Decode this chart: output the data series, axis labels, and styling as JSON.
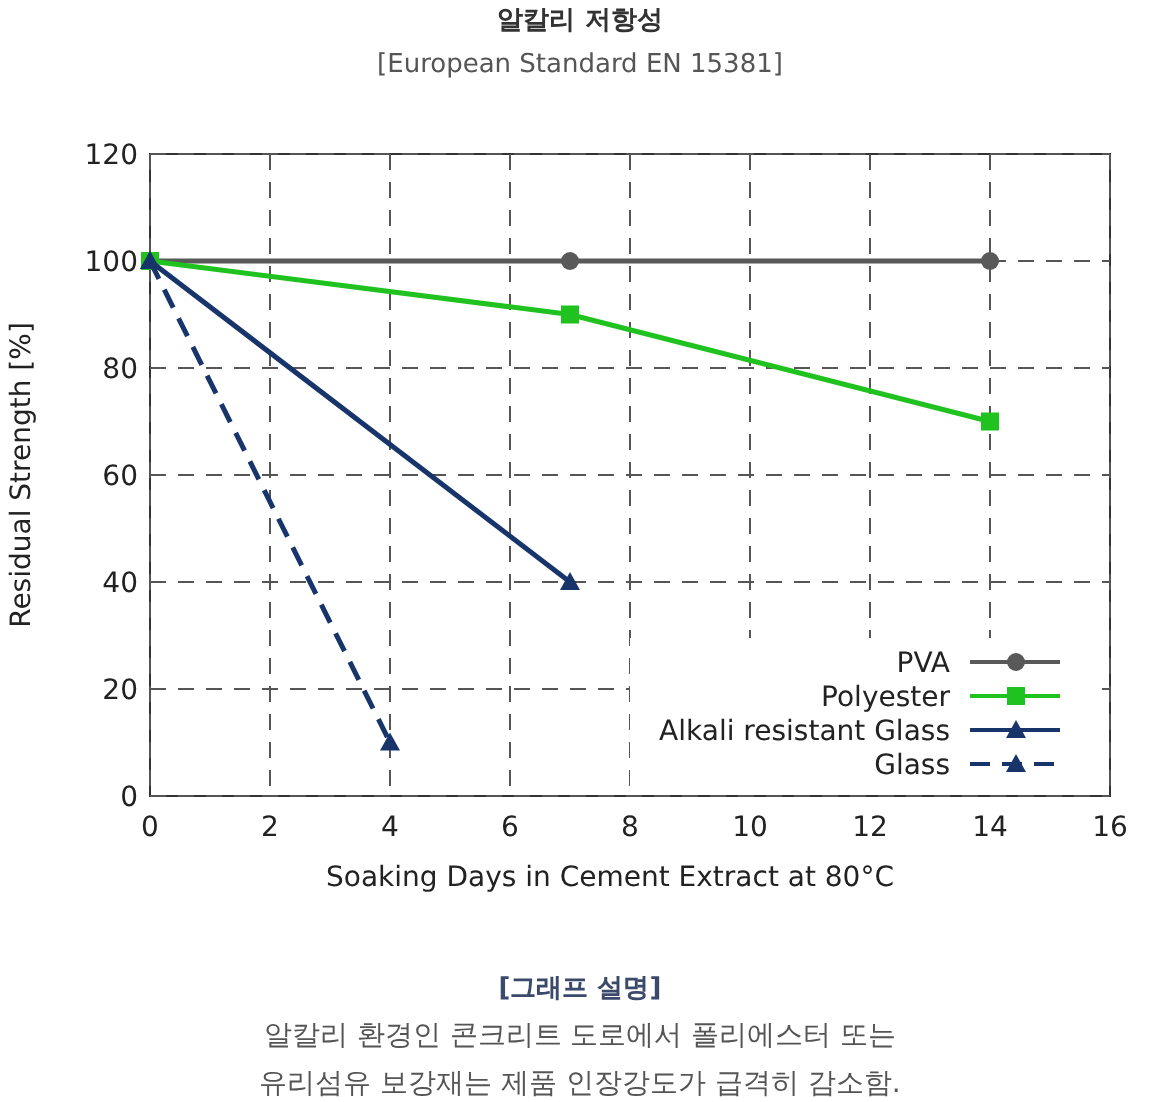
{
  "chart_data": {
    "type": "line",
    "title": "알칼리 저항성",
    "subtitle": "[European Standard EN 15381]",
    "xlabel": "Soaking Days in Cement Extract at 80°C",
    "ylabel": "Residual Strength [%]",
    "xlim": [
      0,
      16
    ],
    "xticks": [
      0,
      2,
      4,
      6,
      8,
      10,
      12,
      14,
      16
    ],
    "ylim": [
      0,
      120
    ],
    "yticks": [
      0,
      20,
      40,
      60,
      80,
      100,
      120
    ],
    "grid": true,
    "legend": "bottom right",
    "series": [
      {
        "name": "PVA",
        "color": "#595959",
        "x": [
          0,
          7,
          14
        ],
        "values": [
          100,
          100,
          100
        ],
        "marker": "circle",
        "line_style": "solid"
      },
      {
        "name": "Polyester",
        "color": "#1fc21f",
        "x": [
          0,
          7,
          14
        ],
        "values": [
          100,
          90,
          70
        ],
        "marker": "square",
        "line_style": "solid"
      },
      {
        "name": "Alkali resistant Glass",
        "color": "#17356a",
        "x": [
          0,
          7
        ],
        "values": [
          100,
          40
        ],
        "marker": "triangle",
        "line_style": "solid"
      },
      {
        "name": "Glass",
        "color": "#17356a",
        "x": [
          0,
          4
        ],
        "values": [
          100,
          10
        ],
        "marker": "triangle",
        "line_style": "dashed"
      }
    ],
    "annotations": [
      "[그래프 설명]",
      "알칼리 환경인 콘크리트 도로에서 폴리에스터 또는",
      "유리섬유 보강재는 제품 인장강도가 급격히 감소함."
    ]
  }
}
